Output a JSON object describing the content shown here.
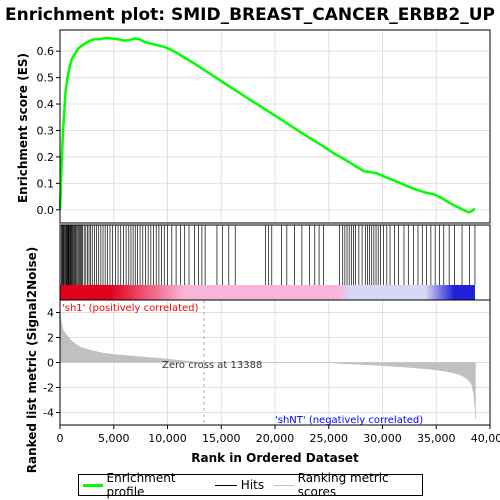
{
  "chart_data": {
    "type": "line",
    "title": "Enrichment plot: SMID_BREAST_CANCER_ERBB2_UP",
    "xlabel": "Rank in Ordered Dataset",
    "es_ylabel": "Enrichment score (ES)",
    "metric_ylabel": "Ranked list metric (Signal2Noise)",
    "xlim": [
      0,
      40000
    ],
    "es_ylim": [
      -0.05,
      0.68
    ],
    "metric_ylim": [
      -5,
      5
    ],
    "x_ticks": [
      0,
      5000,
      10000,
      15000,
      20000,
      25000,
      30000,
      35000,
      40000
    ],
    "x_tick_labels": [
      "0",
      "5,000",
      "10,000",
      "15,000",
      "20,000",
      "25,000",
      "30,000",
      "35,000",
      "40,000"
    ],
    "es_ticks": [
      0.0,
      0.1,
      0.2,
      0.3,
      0.4,
      0.5,
      0.6
    ],
    "es_tick_labels": [
      "0.0",
      "0.1",
      "0.2",
      "0.3",
      "0.4",
      "0.5",
      "0.6"
    ],
    "metric_ticks": [
      4,
      2,
      0,
      -2,
      -4
    ],
    "metric_tick_labels": [
      "4",
      "2",
      "0",
      "-2",
      "-4"
    ],
    "grid": true,
    "enrichment_profile": {
      "name": "Enrichment profile",
      "color": "#00ff00",
      "x": [
        0,
        50,
        100,
        200,
        300,
        400,
        500,
        700,
        900,
        1100,
        1400,
        1700,
        2000,
        2400,
        2800,
        3200,
        3700,
        4200,
        4800,
        5400,
        6000,
        6500,
        7000,
        7400,
        7800,
        8300,
        8800,
        9300,
        9800,
        10300,
        10800,
        11500,
        12500,
        13500,
        14500,
        15500,
        16500,
        17500,
        18500,
        19500,
        20500,
        21500,
        22500,
        23500,
        24500,
        25500,
        26500,
        27500,
        28300,
        28800,
        29500,
        30200,
        31000,
        32000,
        33000,
        34000,
        34800,
        35500,
        36000,
        36500,
        37000,
        37500,
        38000,
        38300,
        38600
      ],
      "y": [
        0.0,
        0.05,
        0.12,
        0.22,
        0.31,
        0.37,
        0.44,
        0.5,
        0.54,
        0.57,
        0.59,
        0.61,
        0.62,
        0.63,
        0.64,
        0.645,
        0.645,
        0.65,
        0.648,
        0.645,
        0.64,
        0.643,
        0.648,
        0.645,
        0.636,
        0.63,
        0.625,
        0.62,
        0.615,
        0.606,
        0.595,
        0.578,
        0.553,
        0.527,
        0.5,
        0.473,
        0.447,
        0.421,
        0.395,
        0.369,
        0.343,
        0.317,
        0.29,
        0.265,
        0.24,
        0.213,
        0.19,
        0.165,
        0.145,
        0.143,
        0.138,
        0.125,
        0.112,
        0.095,
        0.078,
        0.065,
        0.058,
        0.045,
        0.032,
        0.02,
        0.01,
        0.0,
        -0.01,
        -0.005,
        0.005
      ]
    },
    "hits": {
      "name": "Hits",
      "color": "#000000",
      "x": [
        120,
        200,
        280,
        350,
        420,
        500,
        580,
        650,
        700,
        760,
        820,
        880,
        950,
        1020,
        1100,
        1180,
        1260,
        1340,
        1420,
        1500,
        1600,
        1700,
        1800,
        1900,
        2000,
        2100,
        2250,
        2400,
        2550,
        2700,
        2850,
        3000,
        3200,
        3400,
        3600,
        3800,
        4000,
        4200,
        4400,
        4650,
        4900,
        5150,
        5400,
        5650,
        5900,
        6150,
        6400,
        6600,
        6800,
        7000,
        7200,
        7450,
        7700,
        7950,
        8200,
        8450,
        8700,
        8950,
        9200,
        9450,
        9700,
        10000,
        10400,
        10800,
        11200,
        11600,
        12000,
        12500,
        12900,
        13200,
        13500,
        14600,
        15100,
        15700,
        16300,
        19100,
        19400,
        19700,
        20600,
        21100,
        21800,
        22500,
        23200,
        23700,
        24100,
        24500,
        26000,
        26300,
        26500,
        26700,
        26900,
        27100,
        27300,
        27500,
        27800,
        28100,
        28400,
        28600,
        28800,
        29000,
        29200,
        29400,
        29600,
        29800,
        30100,
        30400,
        30700,
        31100,
        31500,
        32000,
        32400,
        32900,
        33300,
        33700,
        34100,
        34500,
        34900,
        35300,
        35700,
        36200,
        36700,
        37400,
        38100,
        38600
      ],
      "band_ymin": 0,
      "band_ymax": 1
    },
    "ranking_metric": {
      "name": "Ranking metric scores",
      "color": "#c0c0c0",
      "x": [
        0,
        50,
        150,
        300,
        600,
        1000,
        1500,
        2000,
        3000,
        4000,
        5000,
        6000,
        7000,
        8000,
        9000,
        10000,
        11000,
        12000,
        13388,
        15000,
        20000,
        25000,
        26000,
        28000,
        30000,
        32000,
        34000,
        35000,
        36000,
        37000,
        37500,
        38000,
        38300,
        38500,
        38600,
        38650
      ],
      "y": [
        5.0,
        3.8,
        3.1,
        2.6,
        2.2,
        1.8,
        1.45,
        1.2,
        0.95,
        0.75,
        0.65,
        0.58,
        0.5,
        0.42,
        0.35,
        0.27,
        0.18,
        0.1,
        0.0,
        0.0,
        0.0,
        0.0,
        -0.08,
        -0.15,
        -0.25,
        -0.36,
        -0.5,
        -0.6,
        -0.72,
        -0.92,
        -1.1,
        -1.4,
        -1.8,
        -2.6,
        -3.6,
        -4.5
      ]
    },
    "zero_cross": 13388,
    "annotations": {
      "positive": "'sh1' (positively correlated)",
      "negative": "'shNT' (negatively correlated)",
      "zero_cross": "Zero cross at 13388"
    },
    "colors": {
      "positive_text": "#ff0000",
      "negative_text": "#0000ff",
      "band_pos_strong": "#e2001a",
      "band_pos_light": "#f7b6d8",
      "band_neg_light": "#d8d8f6",
      "band_neg_strong": "#2020d8"
    }
  },
  "legend": {
    "items": [
      {
        "label": "Enrichment profile",
        "color": "#00ff00",
        "stroke": 3
      },
      {
        "label": "Hits",
        "color": "#000000",
        "stroke": 1.5
      },
      {
        "label": "Ranking metric scores",
        "color": "#c0c0c0",
        "stroke": 1.5
      }
    ]
  }
}
